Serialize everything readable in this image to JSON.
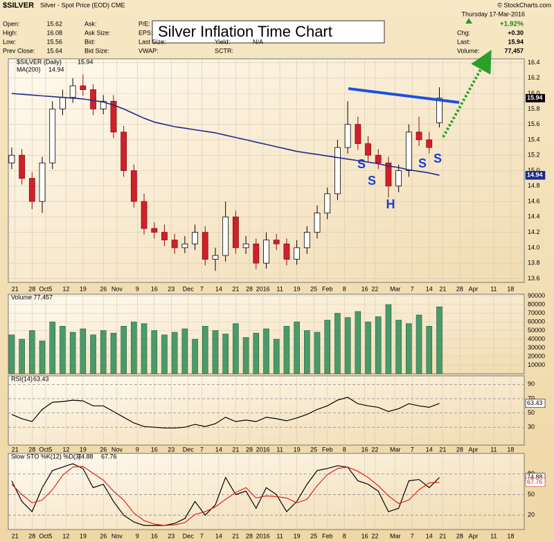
{
  "header": {
    "symbol": "$SILVER",
    "name": "Silver - Spot Price (EOD) CME",
    "credit": "© StockCharts.com",
    "date": "Thursday 17-Mar-2016",
    "title": "Silver Inflation Time Chart",
    "quote": [
      [
        "Open:",
        "15.62"
      ],
      [
        "High:",
        "16.08"
      ],
      [
        "Low:",
        "15.56"
      ],
      [
        "Prev Close:",
        "15.64"
      ]
    ],
    "fields2": [
      "Ask:",
      "Ask Size:",
      "Bid:",
      "Bid Size:"
    ],
    "fields3": [
      "P/E:",
      "EPS:",
      "Last Size:",
      "VWAP:"
    ],
    "fields4": [
      "Yield:",
      "N/A",
      "SCTR:"
    ],
    "change": [
      [
        "",
        "+1.92%"
      ],
      [
        "Chg:",
        "+0.30"
      ],
      [
        "Last:",
        "15.94"
      ],
      [
        "Volume:",
        "77,457"
      ]
    ]
  },
  "annotations": [
    "S",
    "S",
    "H",
    "S",
    "S"
  ],
  "chart_data": [
    {
      "type": "candlestick",
      "x": [
        0,
        3,
        6,
        9,
        12,
        15,
        18,
        21,
        24,
        27,
        30,
        33,
        36,
        39,
        42,
        45,
        48,
        51,
        54,
        57,
        60,
        63,
        66,
        69,
        72,
        75,
        78,
        81,
        84,
        87,
        90,
        93,
        96,
        99,
        102,
        105,
        108,
        111,
        114,
        117,
        120,
        123,
        126
      ],
      "open": [
        15.1,
        15.2,
        14.9,
        14.6,
        15.1,
        15.8,
        15.95,
        16.1,
        16.05,
        15.8,
        15.9,
        15.5,
        15.0,
        14.6,
        14.25,
        14.2,
        14.1,
        14.0,
        14.05,
        14.2,
        13.85,
        13.9,
        14.4,
        14.0,
        14.05,
        13.8,
        14.1,
        14.05,
        13.85,
        14.0,
        14.2,
        14.45,
        14.7,
        15.3,
        15.6,
        15.35,
        15.2,
        15.1,
        14.8,
        15.0,
        15.5,
        15.4,
        15.62
      ],
      "high": [
        15.3,
        15.28,
        14.98,
        15.18,
        15.9,
        16.05,
        16.2,
        16.25,
        16.12,
        15.98,
        15.98,
        15.58,
        15.08,
        14.7,
        14.33,
        14.3,
        14.18,
        14.15,
        14.3,
        14.28,
        14.0,
        14.6,
        14.48,
        14.15,
        14.12,
        14.2,
        14.18,
        14.12,
        14.1,
        14.28,
        14.55,
        14.78,
        15.4,
        15.9,
        15.7,
        15.45,
        15.28,
        15.18,
        15.08,
        15.6,
        15.7,
        15.5,
        16.08
      ],
      "low": [
        15.02,
        14.82,
        14.5,
        14.45,
        15.02,
        15.72,
        15.88,
        15.97,
        15.72,
        15.73,
        15.42,
        14.92,
        14.52,
        14.17,
        14.12,
        14.02,
        13.92,
        13.93,
        13.97,
        13.77,
        13.7,
        13.82,
        13.92,
        13.92,
        13.72,
        13.73,
        13.97,
        13.77,
        13.78,
        13.92,
        14.12,
        14.37,
        14.62,
        15.22,
        15.27,
        15.12,
        15.02,
        14.65,
        14.72,
        14.92,
        15.32,
        15.22,
        15.56
      ],
      "close": [
        15.2,
        14.9,
        14.6,
        15.1,
        15.8,
        15.95,
        16.1,
        16.05,
        15.8,
        15.9,
        15.5,
        15.0,
        14.6,
        14.25,
        14.2,
        14.1,
        14.0,
        14.05,
        14.2,
        13.85,
        13.9,
        14.4,
        14.0,
        14.05,
        13.8,
        14.1,
        14.05,
        13.85,
        14.0,
        14.2,
        14.45,
        14.7,
        15.3,
        15.6,
        15.35,
        15.2,
        15.1,
        14.8,
        15.0,
        15.5,
        15.4,
        15.3,
        15.94
      ],
      "name": "$SILVER (Daily)",
      "series": [
        {
          "name": "MA(200)",
          "color": "#1f2a8a",
          "values": [
            16.0,
            15.99,
            15.98,
            15.97,
            15.96,
            15.95,
            15.94,
            15.93,
            15.91,
            15.89,
            15.85,
            15.8,
            15.74,
            15.68,
            15.63,
            15.6,
            15.57,
            15.55,
            15.53,
            15.51,
            15.49,
            15.46,
            15.43,
            15.4,
            15.37,
            15.34,
            15.31,
            15.28,
            15.25,
            15.23,
            15.21,
            15.19,
            15.17,
            15.15,
            15.13,
            15.11,
            15.09,
            15.06,
            15.04,
            15.01,
            14.99,
            14.97,
            14.94
          ]
        }
      ],
      "up_color": "#ffffff",
      "down_color": "#d0202a",
      "xlim": [
        -1,
        151
      ],
      "xticks": [
        {
          "value": 1,
          "label": "21"
        },
        {
          "value": 6,
          "label": "28"
        },
        {
          "value": 10,
          "label": "Oct5"
        },
        {
          "value": 16,
          "label": "12"
        },
        {
          "value": 21,
          "label": "19"
        },
        {
          "value": 27,
          "label": "26"
        },
        {
          "value": 31,
          "label": "Nov"
        },
        {
          "value": 37,
          "label": "9"
        },
        {
          "value": 42,
          "label": "16"
        },
        {
          "value": 47,
          "label": "23"
        },
        {
          "value": 52,
          "label": "Dec"
        },
        {
          "value": 56,
          "label": "7"
        },
        {
          "value": 61,
          "label": "14"
        },
        {
          "value": 66,
          "label": "21"
        },
        {
          "value": 70,
          "label": "28"
        },
        {
          "value": 74,
          "label": "2016"
        },
        {
          "value": 79,
          "label": "11"
        },
        {
          "value": 84,
          "label": "19"
        },
        {
          "value": 89,
          "label": "25"
        },
        {
          "value": 93,
          "label": "Feb"
        },
        {
          "value": 98,
          "label": "8"
        },
        {
          "value": 104,
          "label": "16"
        },
        {
          "value": 107,
          "label": "22"
        },
        {
          "value": 113,
          "label": "Mar"
        },
        {
          "value": 118,
          "label": "7"
        },
        {
          "value": 123,
          "label": "14"
        },
        {
          "value": 127,
          "label": "21"
        },
        {
          "value": 132,
          "label": "28"
        },
        {
          "value": 136,
          "label": "Apr"
        },
        {
          "value": 142,
          "label": "11"
        },
        {
          "value": 147,
          "label": "18"
        }
      ],
      "ylim": [
        13.55,
        16.45
      ],
      "yticks": [
        13.6,
        13.8,
        {
          "value": 14,
          "label": "14.0"
        },
        14.2,
        14.4,
        14.6,
        14.8,
        {
          "value": 15,
          "label": "15.0"
        },
        15.2,
        15.4,
        15.6,
        15.8,
        {
          "value": 16,
          "label": "16.0"
        },
        16.2,
        16.4
      ],
      "grid": true
    },
    {
      "type": "bar",
      "label": "Volume 77,457",
      "color": "#4a9a6a",
      "values": [
        45000,
        40000,
        50000,
        38000,
        60000,
        55000,
        48000,
        52000,
        45000,
        50000,
        47000,
        55000,
        60000,
        58000,
        50000,
        45000,
        48000,
        52000,
        40000,
        55000,
        50000,
        46000,
        58000,
        42000,
        47000,
        52000,
        40000,
        55000,
        60000,
        50000,
        48000,
        62000,
        70000,
        65000,
        72000,
        60000,
        66000,
        80000,
        62000,
        58000,
        68000,
        55000,
        77457
      ],
      "ylim": [
        0,
        92000
      ],
      "yticks": [
        10000,
        20000,
        30000,
        40000,
        50000,
        60000,
        70000,
        80000,
        90000
      ]
    },
    {
      "type": "line",
      "label": "RSI(14)",
      "series": [
        {
          "name": "RSI",
          "color": "#000000",
          "values": [
            48,
            42,
            38,
            55,
            65,
            66,
            68,
            67,
            60,
            60,
            52,
            44,
            36,
            31,
            30,
            29,
            29,
            30,
            34,
            31,
            35,
            44,
            38,
            40,
            38,
            44,
            42,
            39,
            43,
            48,
            55,
            60,
            68,
            72,
            63,
            60,
            58,
            52,
            56,
            63,
            60,
            58,
            63.43
          ]
        }
      ],
      "ylim": [
        5,
        102
      ],
      "yticks": [
        30,
        50,
        70,
        90
      ]
    },
    {
      "type": "line",
      "label": "Slow STO %K(12) %D(3)",
      "series": [
        {
          "name": "%K",
          "color": "#000000",
          "values": [
            70,
            40,
            25,
            60,
            85,
            90,
            95,
            88,
            60,
            65,
            40,
            20,
            10,
            5,
            5,
            5,
            8,
            15,
            40,
            20,
            35,
            75,
            50,
            55,
            30,
            60,
            50,
            25,
            40,
            65,
            85,
            88,
            92,
            90,
            70,
            65,
            55,
            25,
            30,
            70,
            72,
            60,
            74.88
          ]
        },
        {
          "name": "%D",
          "color": "#e0201a",
          "values": [
            65,
            50,
            38,
            42,
            57,
            78,
            90,
            91,
            81,
            71,
            55,
            42,
            23,
            12,
            7,
            5,
            6,
            9,
            21,
            25,
            32,
            43,
            53,
            60,
            45,
            48,
            47,
            45,
            38,
            43,
            63,
            79,
            88,
            90,
            84,
            75,
            63,
            48,
            37,
            42,
            57,
            67,
            67.76
          ]
        }
      ],
      "ylim": [
        -1,
        110
      ],
      "yticks": [
        20,
        50,
        80
      ]
    }
  ]
}
